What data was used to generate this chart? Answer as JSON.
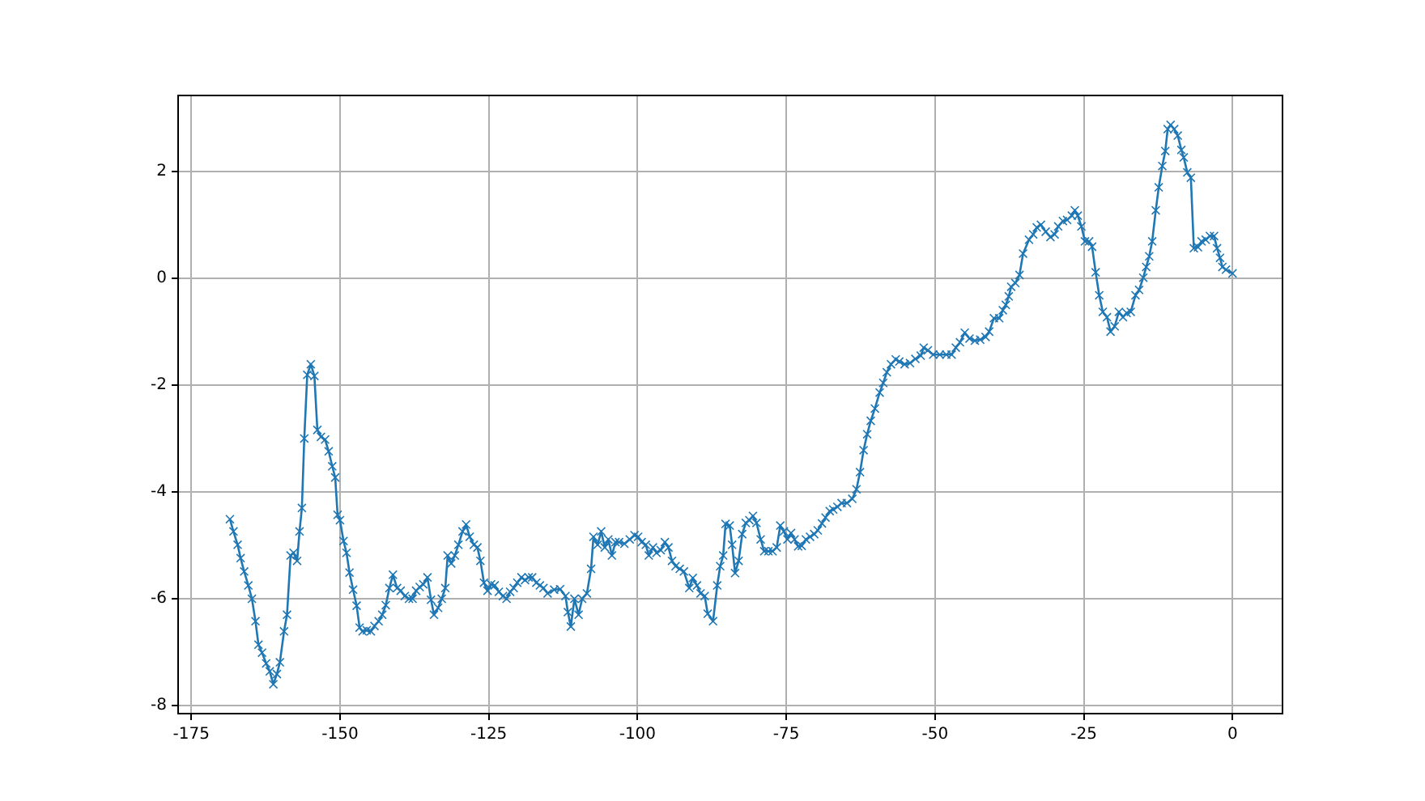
{
  "chart_data": {
    "type": "line",
    "xlim": [
      -177.2,
      8.4
    ],
    "ylim": [
      -8.15,
      3.42
    ],
    "xticks": [
      -175,
      -150,
      -125,
      -100,
      -75,
      -50,
      -25,
      0
    ],
    "yticks": [
      -8,
      -6,
      -4,
      -2,
      0,
      2
    ],
    "grid": true,
    "marker": "cross",
    "line_style": "solid",
    "series": [
      {
        "color": "#1f77b4",
        "x": [
          -168.5,
          -167.9,
          -167.2,
          -166.7,
          -166.1,
          -165.4,
          -164.8,
          -164.2,
          -163.7,
          -163.1,
          -162.4,
          -161.8,
          -161.2,
          -160.6,
          -160.1,
          -159.4,
          -158.9,
          -158.3,
          -157.8,
          -157.2,
          -156.8,
          -156.4,
          -156.0,
          -155.5,
          -154.9,
          -154.3,
          -153.8,
          -153.2,
          -152.5,
          -151.9,
          -151.3,
          -150.8,
          -150.4,
          -150.0,
          -149.4,
          -148.9,
          -148.4,
          -147.8,
          -147.2,
          -146.7,
          -146.2,
          -145.5,
          -144.8,
          -144.2,
          -143.5,
          -142.9,
          -142.3,
          -141.7,
          -141.1,
          -140.4,
          -139.8,
          -139.1,
          -138.4,
          -137.8,
          -137.2,
          -136.6,
          -136.0,
          -135.3,
          -134.7,
          -134.2,
          -133.5,
          -132.9,
          -132.3,
          -131.9,
          -131.3,
          -130.7,
          -130.1,
          -129.4,
          -128.8,
          -128.2,
          -127.5,
          -126.9,
          -126.4,
          -125.8,
          -125.2,
          -124.6,
          -124.0,
          -123.3,
          -122.6,
          -122.0,
          -121.4,
          -120.8,
          -120.2,
          -119.5,
          -118.9,
          -118.3,
          -117.7,
          -117.0,
          -116.4,
          -115.8,
          -115.1,
          -114.0,
          -113.0,
          -112.1,
          -111.7,
          -111.2,
          -110.6,
          -109.9,
          -109.3,
          -108.5,
          -107.8,
          -107.4,
          -106.7,
          -106.1,
          -105.5,
          -104.9,
          -104.3,
          -103.7,
          -103.1,
          -102.2,
          -101.3,
          -100.5,
          -99.9,
          -99.3,
          -98.6,
          -98.1,
          -97.4,
          -96.8,
          -96.1,
          -95.4,
          -94.8,
          -94.2,
          -93.6,
          -92.9,
          -92.2,
          -91.3,
          -90.7,
          -90.0,
          -89.4,
          -88.7,
          -88.2,
          -87.3,
          -86.6,
          -86.1,
          -85.6,
          -85.2,
          -84.5,
          -84.1,
          -83.6,
          -83.0,
          -82.4,
          -81.8,
          -81.2,
          -80.6,
          -80.0,
          -79.3,
          -78.7,
          -78.0,
          -77.3,
          -76.6,
          -76.0,
          -75.4,
          -74.8,
          -74.2,
          -73.6,
          -73.0,
          -72.4,
          -71.7,
          -71.0,
          -70.3,
          -69.7,
          -69.0,
          -68.4,
          -67.7,
          -67.1,
          -66.4,
          -65.7,
          -64.8,
          -63.9,
          -63.2,
          -62.6,
          -62.0,
          -61.4,
          -60.8,
          -60.1,
          -59.3,
          -58.7,
          -58.1,
          -57.4,
          -56.6,
          -56.0,
          -55.1,
          -54.2,
          -53.3,
          -52.4,
          -51.9,
          -51.2,
          -50.3,
          -49.2,
          -48.1,
          -47.2,
          -46.5,
          -45.8,
          -45.0,
          -44.2,
          -43.3,
          -42.4,
          -41.5,
          -40.9,
          -40.1,
          -39.2,
          -38.6,
          -38.1,
          -37.6,
          -37.2,
          -36.5,
          -35.8,
          -35.2,
          -34.2,
          -33.5,
          -32.9,
          -32.2,
          -31.4,
          -30.6,
          -29.9,
          -29.3,
          -28.5,
          -27.8,
          -27.0,
          -26.5,
          -26.0,
          -25.4,
          -24.8,
          -24.1,
          -23.6,
          -23.0,
          -22.4,
          -21.8,
          -21.1,
          -20.5,
          -19.8,
          -19.1,
          -18.4,
          -17.8,
          -17.1,
          -16.3,
          -15.7,
          -15.0,
          -14.5,
          -14.0,
          -13.5,
          -12.9,
          -12.4,
          -11.8,
          -11.3,
          -10.9,
          -10.4,
          -9.8,
          -9.2,
          -8.6,
          -8.2,
          -7.6,
          -7.0,
          -6.5,
          -5.8,
          -5.2,
          -4.5,
          -3.8,
          -3.1,
          -2.6,
          -2.1,
          -1.7,
          -1.1,
          0.0
        ],
        "values": [
          -4.51,
          -4.74,
          -4.99,
          -5.24,
          -5.49,
          -5.75,
          -6.0,
          -6.42,
          -6.86,
          -7.01,
          -7.21,
          -7.36,
          -7.6,
          -7.41,
          -7.19,
          -6.61,
          -6.3,
          -5.19,
          -5.14,
          -5.29,
          -4.74,
          -4.3,
          -3.0,
          -1.81,
          -1.61,
          -1.83,
          -2.84,
          -2.97,
          -3.02,
          -3.24,
          -3.52,
          -3.73,
          -4.43,
          -4.53,
          -4.92,
          -5.14,
          -5.51,
          -5.83,
          -6.13,
          -6.54,
          -6.61,
          -6.59,
          -6.61,
          -6.51,
          -6.42,
          -6.3,
          -6.12,
          -5.8,
          -5.55,
          -5.8,
          -5.85,
          -5.95,
          -6.0,
          -6.0,
          -5.85,
          -5.78,
          -5.73,
          -5.6,
          -6.02,
          -6.3,
          -6.17,
          -6.0,
          -5.8,
          -5.19,
          -5.34,
          -5.19,
          -4.99,
          -4.74,
          -4.61,
          -4.84,
          -4.99,
          -5.04,
          -5.29,
          -5.7,
          -5.85,
          -5.73,
          -5.75,
          -5.87,
          -5.95,
          -6.0,
          -5.87,
          -5.8,
          -5.7,
          -5.6,
          -5.65,
          -5.6,
          -5.6,
          -5.7,
          -5.75,
          -5.8,
          -5.9,
          -5.83,
          -5.82,
          -5.95,
          -6.25,
          -6.52,
          -6.0,
          -6.3,
          -6.0,
          -5.9,
          -5.44,
          -4.84,
          -4.99,
          -4.74,
          -5.04,
          -4.89,
          -5.19,
          -4.94,
          -4.94,
          -4.97,
          -4.89,
          -4.81,
          -4.84,
          -4.94,
          -4.99,
          -5.19,
          -5.04,
          -5.14,
          -5.09,
          -4.94,
          -5.04,
          -5.29,
          -5.39,
          -5.44,
          -5.49,
          -5.8,
          -5.61,
          -5.75,
          -5.9,
          -5.95,
          -6.28,
          -6.42,
          -5.75,
          -5.39,
          -5.19,
          -4.6,
          -4.63,
          -4.99,
          -5.52,
          -5.29,
          -4.79,
          -4.58,
          -4.53,
          -4.45,
          -4.58,
          -4.89,
          -5.11,
          -5.11,
          -5.11,
          -5.04,
          -4.63,
          -4.74,
          -4.89,
          -4.77,
          -4.89,
          -5.02,
          -5.01,
          -4.89,
          -4.84,
          -4.79,
          -4.72,
          -4.59,
          -4.48,
          -4.36,
          -4.33,
          -4.28,
          -4.21,
          -4.21,
          -4.13,
          -3.95,
          -3.63,
          -3.22,
          -2.92,
          -2.67,
          -2.44,
          -2.14,
          -1.96,
          -1.76,
          -1.61,
          -1.52,
          -1.56,
          -1.61,
          -1.59,
          -1.51,
          -1.45,
          -1.3,
          -1.35,
          -1.43,
          -1.43,
          -1.43,
          -1.43,
          -1.3,
          -1.2,
          -1.02,
          -1.13,
          -1.17,
          -1.15,
          -1.1,
          -1.0,
          -0.75,
          -0.75,
          -0.6,
          -0.5,
          -0.34,
          -0.16,
          -0.09,
          0.06,
          0.46,
          0.72,
          0.82,
          0.95,
          1.0,
          0.87,
          0.77,
          0.82,
          0.97,
          1.07,
          1.09,
          1.17,
          1.27,
          1.17,
          0.97,
          0.69,
          0.69,
          0.59,
          0.11,
          -0.32,
          -0.63,
          -0.73,
          -1.0,
          -0.9,
          -0.63,
          -0.73,
          -0.65,
          -0.63,
          -0.32,
          -0.22,
          0.01,
          0.21,
          0.41,
          0.69,
          1.27,
          1.7,
          2.1,
          2.38,
          2.79,
          2.87,
          2.79,
          2.67,
          2.4,
          2.26,
          1.98,
          1.88,
          0.56,
          0.58,
          0.69,
          0.72,
          0.79,
          0.79,
          0.56,
          0.38,
          0.21,
          0.16,
          0.09
        ]
      }
    ]
  }
}
